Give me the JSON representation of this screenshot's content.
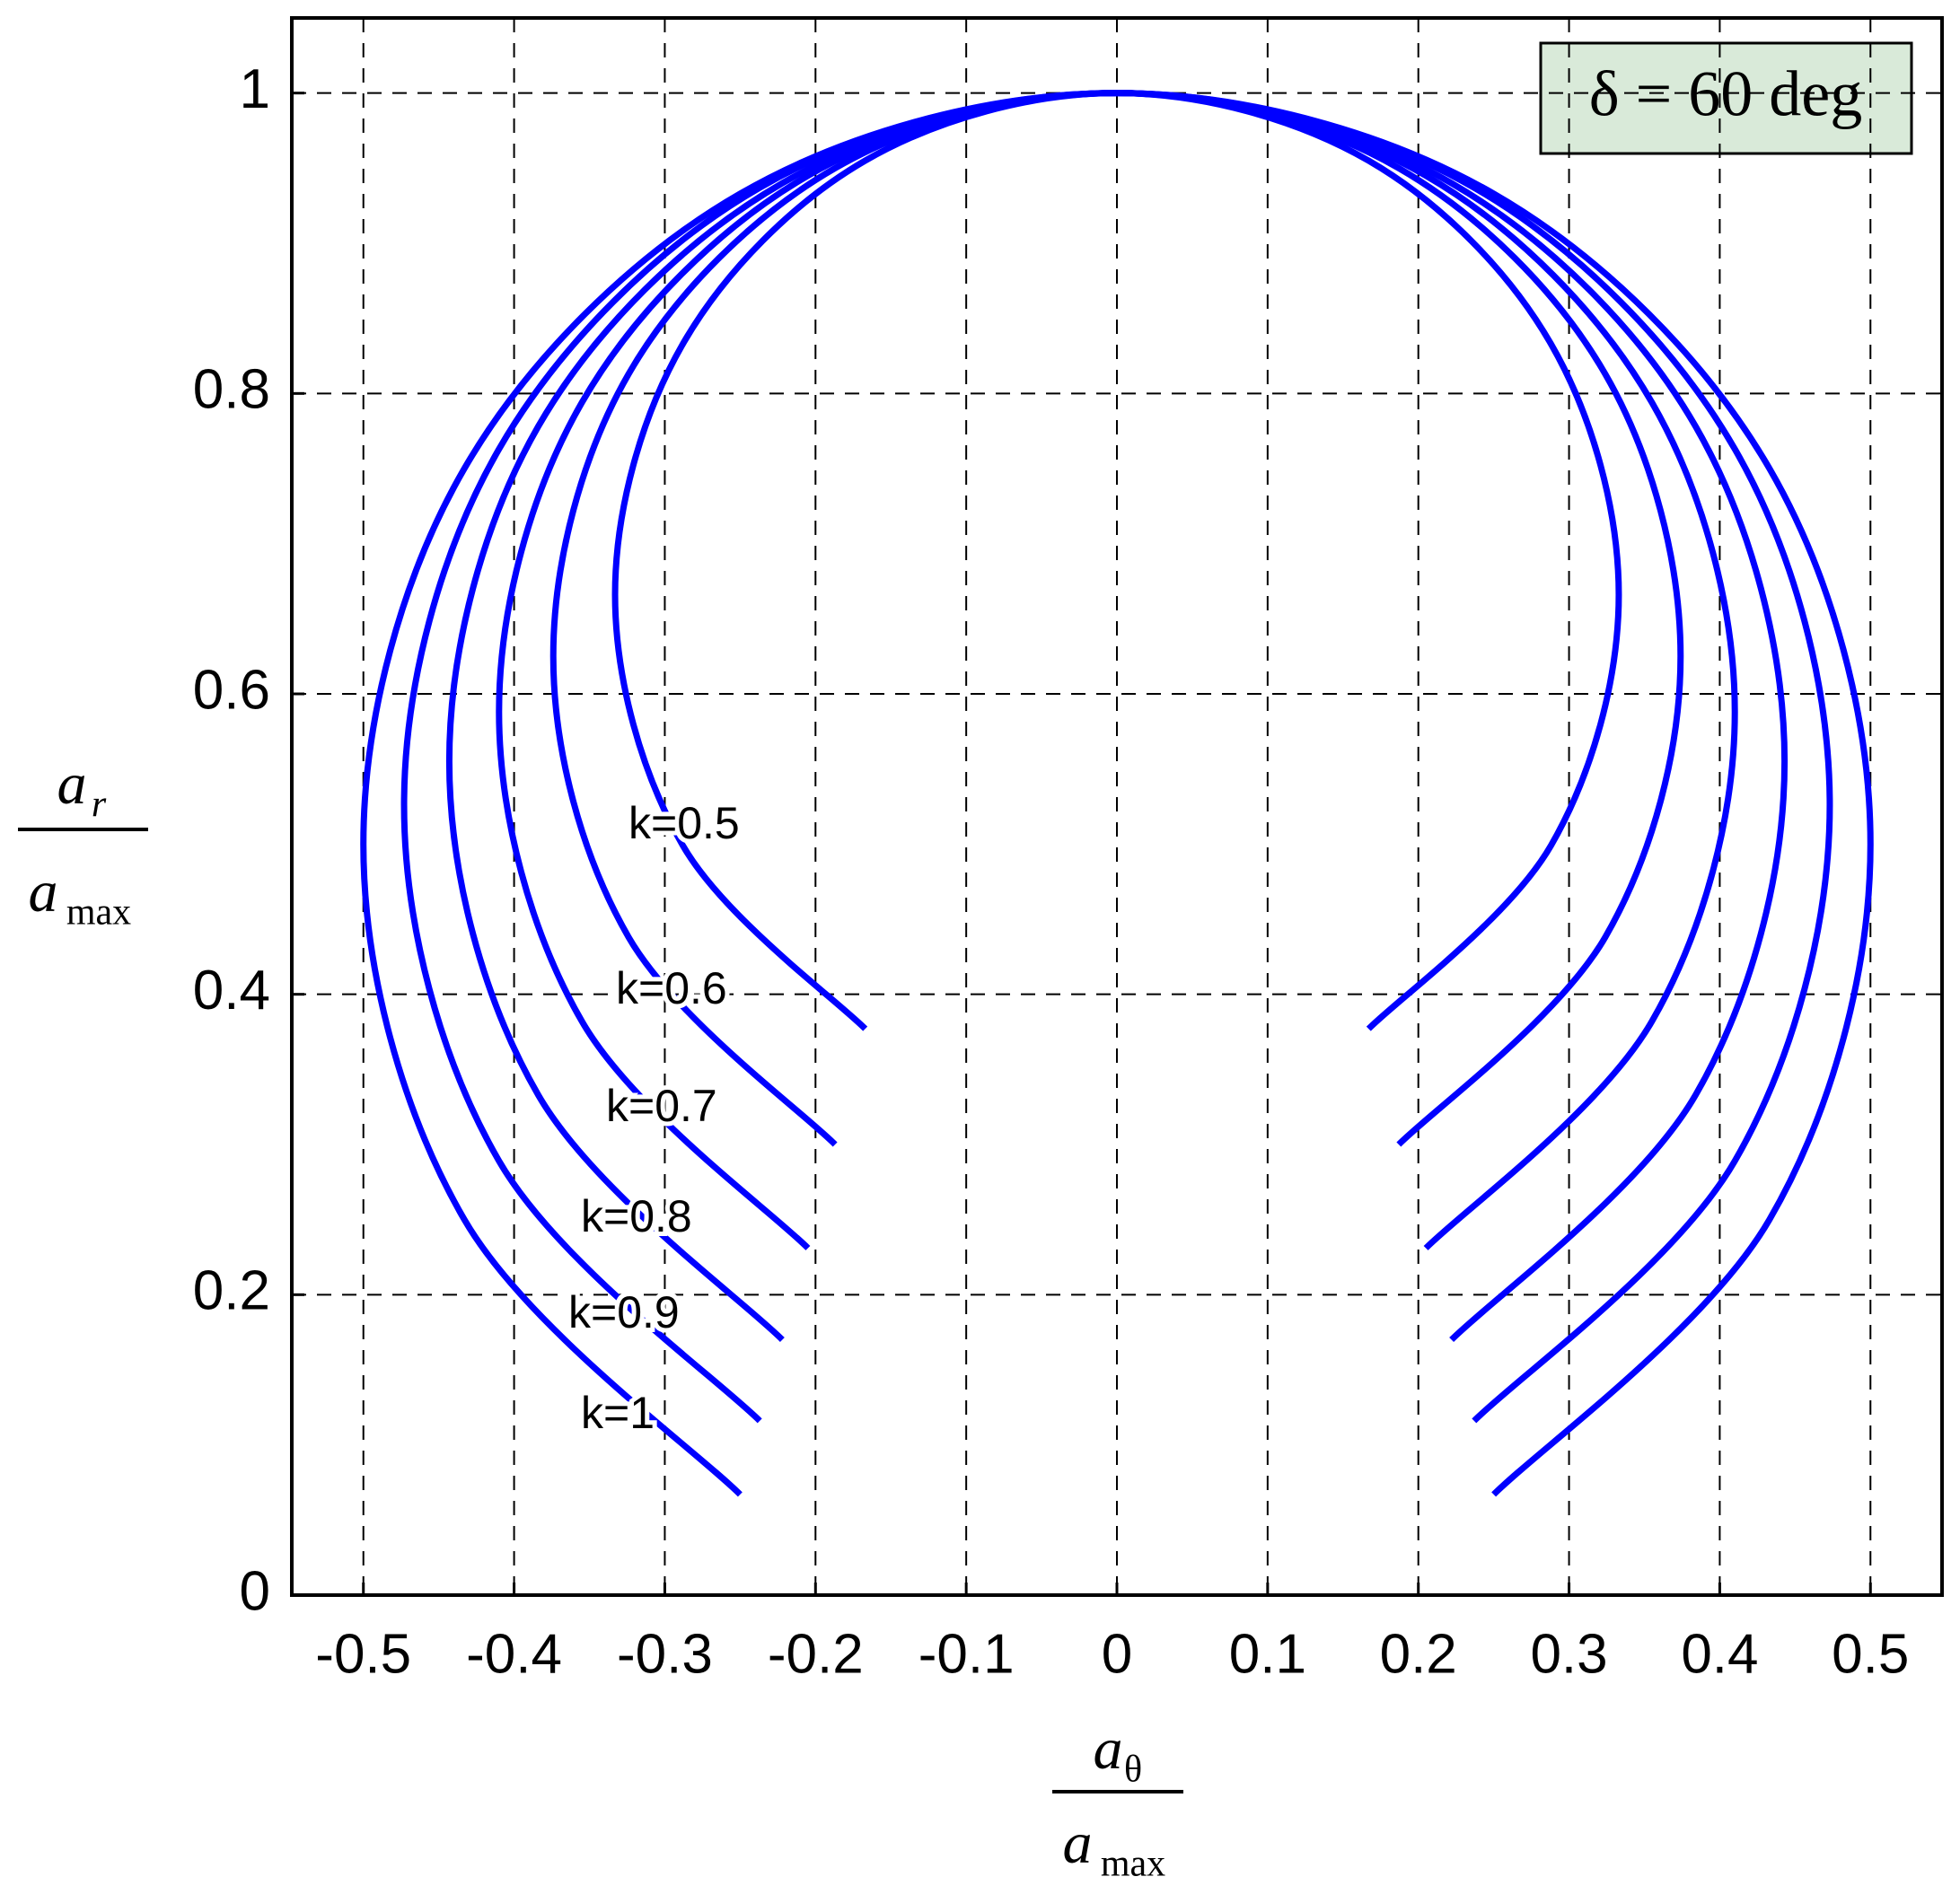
{
  "chart_data": {
    "type": "line",
    "title": "δ = 60 deg",
    "xlabel": {
      "num": "a",
      "num_sub": "θ",
      "den": "a",
      "den_sub": "max"
    },
    "ylabel": {
      "num": "a",
      "num_sub": "r",
      "den": "a",
      "den_sub": "max"
    },
    "xlim": [
      -0.5475,
      0.5475
    ],
    "ylim": [
      0,
      1.05
    ],
    "xticks": [
      -0.5,
      -0.4,
      -0.3,
      -0.2,
      -0.1,
      0,
      0.1,
      0.2,
      0.3,
      0.4,
      0.5
    ],
    "yticks": [
      0,
      0.2,
      0.4,
      0.6,
      0.8,
      1
    ],
    "grid": true,
    "series": [
      {
        "name": "k=0.5",
        "color": "#0000ff",
        "x": [
          -0.167,
          -0.288,
          -0.333,
          -0.288,
          -0.167,
          0,
          0.167,
          0.288,
          0.333,
          0.288,
          0.167
        ],
        "values": [
          0.377,
          0.499,
          0.666,
          0.833,
          0.955,
          1,
          0.955,
          0.833,
          0.666,
          0.499,
          0.377
        ]
      },
      {
        "name": "k=0.6",
        "color": "#0000ff",
        "x": [
          -0.187,
          -0.324,
          -0.374,
          -0.324,
          -0.187,
          0,
          0.187,
          0.324,
          0.374,
          0.324,
          0.187
        ],
        "values": [
          0.3,
          0.438,
          0.625,
          0.813,
          0.95,
          1,
          0.95,
          0.813,
          0.625,
          0.438,
          0.3
        ]
      },
      {
        "name": "k=0.7",
        "color": "#0000ff",
        "x": [
          -0.205,
          -0.355,
          -0.41,
          -0.355,
          -0.205,
          0,
          0.205,
          0.355,
          0.41,
          0.355,
          0.205
        ],
        "values": [
          0.231,
          0.382,
          0.588,
          0.794,
          0.945,
          1,
          0.945,
          0.794,
          0.588,
          0.382,
          0.231
        ]
      },
      {
        "name": "k=0.8",
        "color": "#0000ff",
        "x": [
          -0.222,
          -0.384,
          -0.443,
          -0.384,
          -0.222,
          0,
          0.222,
          0.384,
          0.443,
          0.384,
          0.222
        ],
        "values": [
          0.17,
          0.333,
          0.555,
          0.778,
          0.94,
          1,
          0.94,
          0.778,
          0.555,
          0.333,
          0.17
        ]
      },
      {
        "name": "k=0.9",
        "color": "#0000ff",
        "x": [
          -0.237,
          -0.41,
          -0.473,
          -0.41,
          -0.237,
          0,
          0.237,
          0.41,
          0.473,
          0.41,
          0.237
        ],
        "values": [
          0.116,
          0.289,
          0.526,
          0.763,
          0.937,
          1,
          0.937,
          0.763,
          0.526,
          0.289,
          0.116
        ]
      },
      {
        "name": "k=1",
        "color": "#0000ff",
        "x": [
          -0.25,
          -0.433,
          -0.5,
          -0.433,
          -0.25,
          0,
          0.25,
          0.433,
          0.5,
          0.433,
          0.25
        ],
        "values": [
          0.067,
          0.25,
          0.5,
          0.75,
          0.933,
          1,
          0.933,
          0.75,
          0.5,
          0.25,
          0.067
        ]
      }
    ]
  }
}
